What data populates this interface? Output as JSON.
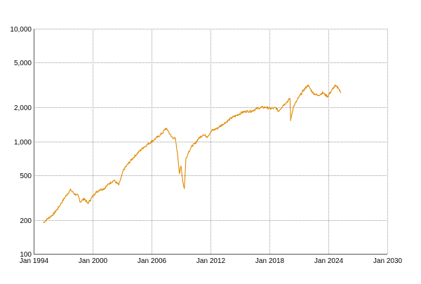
{
  "chart_data": {
    "type": "line",
    "title": "",
    "xlabel": "",
    "ylabel": "",
    "y_scale": "log",
    "grid": true,
    "legend": "none",
    "colors": {
      "series": "#E08A00",
      "grid": "#9A9A9A"
    },
    "xlim": [
      "1994-01",
      "2030-01"
    ],
    "ylim": [
      100,
      10000
    ],
    "x_ticks": [
      {
        "label": "Jan 1994",
        "year": 1994
      },
      {
        "label": "Jan 2000",
        "year": 2000
      },
      {
        "label": "Jan 2006",
        "year": 2006
      },
      {
        "label": "Jan 2012",
        "year": 2012
      },
      {
        "label": "Jan 2018",
        "year": 2018
      },
      {
        "label": "Jan 2024",
        "year": 2024
      },
      {
        "label": "Jan 2030",
        "year": 2030
      }
    ],
    "y_ticks": [
      {
        "label": "100",
        "value": 100
      },
      {
        "label": "200",
        "value": 200
      },
      {
        "label": "500",
        "value": 500
      },
      {
        "label": "1,000",
        "value": 1000
      },
      {
        "label": "2,000",
        "value": 2000
      },
      {
        "label": "5,000",
        "value": 5000
      },
      {
        "label": "10,000",
        "value": 10000
      }
    ],
    "series": [
      {
        "x": [
          "1995-01",
          "1995-06",
          "1996-01",
          "1996-06",
          "1997-01",
          "1997-06",
          "1997-10",
          "1998-03",
          "1998-07",
          "1998-10",
          "1999-03",
          "1999-07",
          "1999-10",
          "2000-03",
          "2000-09",
          "2001-03",
          "2001-09",
          "2002-03",
          "2002-09",
          "2003-03",
          "2003-09",
          "2004-03",
          "2004-09",
          "2005-03",
          "2005-09",
          "2006-03",
          "2006-09",
          "2007-03",
          "2007-06",
          "2007-09",
          "2008-01",
          "2008-06",
          "2008-09",
          "2008-11",
          "2009-01",
          "2009-03",
          "2009-05",
          "2009-07",
          "2009-10",
          "2010-03",
          "2010-06",
          "2010-10",
          "2011-04",
          "2011-09",
          "2012-03",
          "2012-09",
          "2013-03",
          "2013-09",
          "2014-03",
          "2014-09",
          "2015-03",
          "2015-09",
          "2016-03",
          "2016-09",
          "2017-03",
          "2017-09",
          "2018-03",
          "2018-09",
          "2018-12",
          "2019-06",
          "2019-12",
          "2020-02",
          "2020-03",
          "2020-06",
          "2020-12",
          "2021-06",
          "2021-12",
          "2022-06",
          "2022-12",
          "2023-06",
          "2023-12",
          "2024-06",
          "2024-09",
          "2025-01",
          "2025-04"
        ],
        "y": [
          190,
          205,
          225,
          250,
          300,
          340,
          370,
          340,
          330,
          290,
          310,
          280,
          300,
          340,
          370,
          380,
          420,
          450,
          410,
          560,
          640,
          720,
          800,
          880,
          950,
          1020,
          1100,
          1200,
          1300,
          1250,
          1100,
          1050,
          750,
          520,
          600,
          450,
          380,
          700,
          800,
          920,
          950,
          1050,
          1150,
          1100,
          1250,
          1300,
          1400,
          1500,
          1620,
          1700,
          1800,
          1850,
          1850,
          1950,
          2000,
          2000,
          1950,
          1980,
          1850,
          2100,
          2300,
          2400,
          1550,
          2000,
          2400,
          2800,
          3150,
          2700,
          2550,
          2700,
          2500,
          2900,
          3100,
          3000,
          2700
        ]
      }
    ]
  }
}
